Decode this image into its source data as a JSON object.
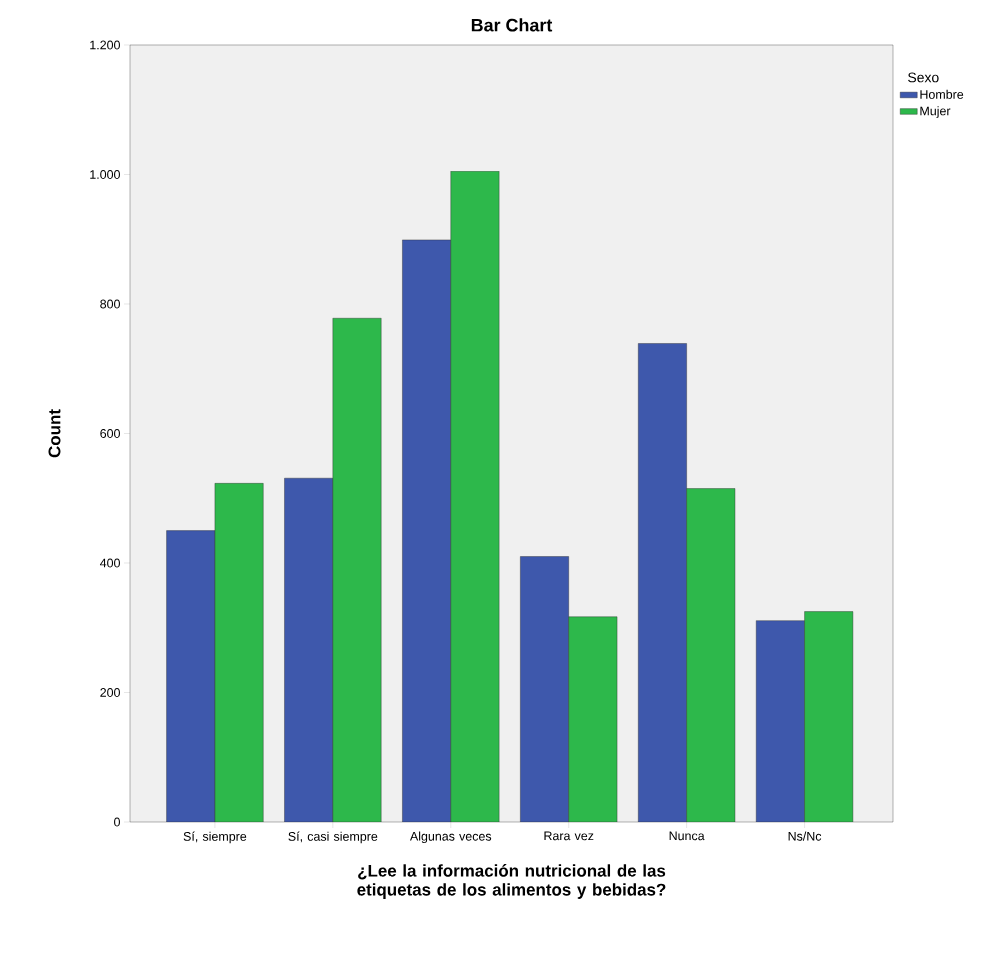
{
  "chart_data": {
    "type": "bar",
    "title": "Bar Chart",
    "xlabel": "¿Lee la información nutricional de las etiquetas de los alimentos y bebidas?",
    "ylabel": "Count",
    "legend_title": "Sexo",
    "categories": [
      "Sí, siempre",
      "Sí, casi siempre",
      "Algunas veces",
      "Rara vez",
      "Nunca",
      "Ns/Nc"
    ],
    "series": [
      {
        "name": "Hombre",
        "color": "#3e58ac",
        "values": [
          450,
          531,
          899,
          410,
          739,
          311
        ]
      },
      {
        "name": "Mujer",
        "color": "#2db84b",
        "values": [
          523,
          778,
          1005,
          317,
          515,
          325
        ]
      }
    ],
    "ylim": [
      0,
      1200
    ],
    "yticks": [
      0,
      200,
      400,
      600,
      800,
      {
        "value": 1000,
        "label": "1.000"
      },
      {
        "value": 1200,
        "label": "1.200"
      }
    ],
    "legend": "top right"
  }
}
